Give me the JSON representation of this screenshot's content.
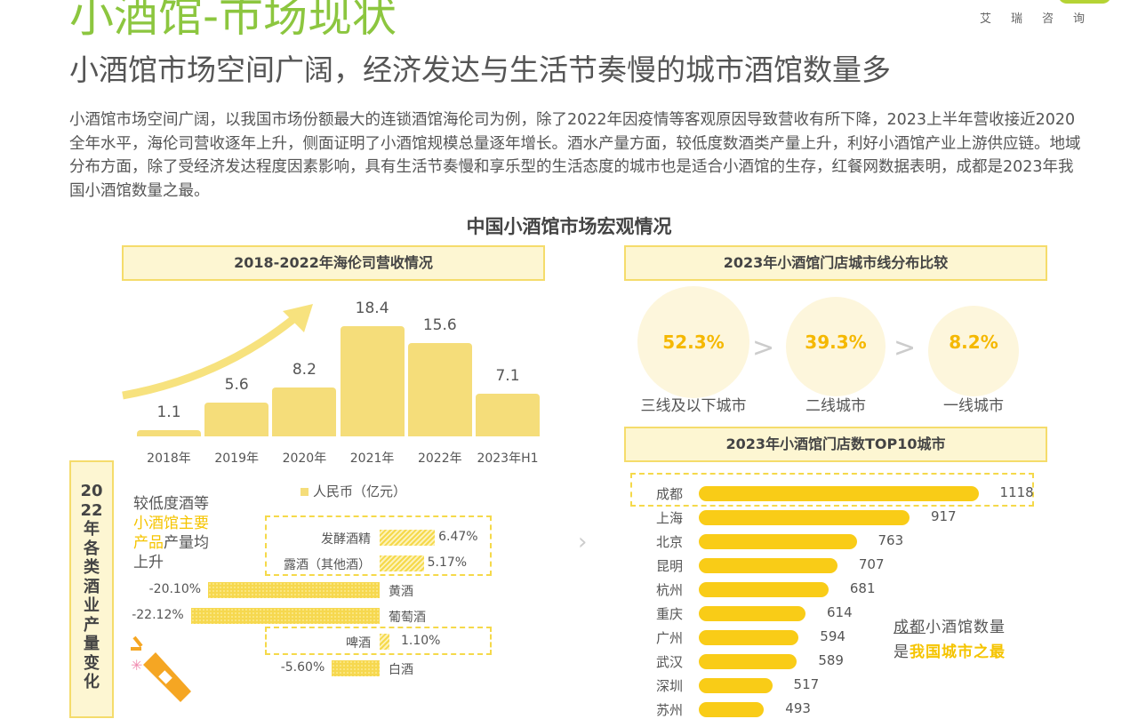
{
  "header": {
    "title": "小酒馆-市场现状",
    "logo": "艾瑞咨询",
    "subtitle": "小酒馆市场空间广阔，经济发达与生活节奏慢的城市酒馆数量多"
  },
  "paragraph": "小酒馆市场空间广阔，以我国市场份额最大的连锁酒馆海伦司为例，除了2022年因疫情等客观原因导致营收有所下降，2023上半年营收接近2020全年水平，海伦司营收逐年上升，侧面证明了小酒馆规模总量逐年增长。酒水产量方面，较低度数酒类产量上升，利好小酒馆产业上游供应链。地域分布方面，除了受经济发达程度因素影响，具有生活节奏慢和享乐型的生活态度的城市也是适合小酒馆的生存，红餐网数据表明，成都是2023年我国小酒馆数量之最。",
  "section_title": "中国小酒馆市场宏观情况",
  "colors": {
    "title_green": "#8cc63f",
    "bar_yellow": "#f5dd7a",
    "city_bar": "#f9cc17",
    "accent": "#f5b800"
  },
  "chart_data": [
    {
      "type": "bar",
      "title": "2018-2022年海伦司营收情况",
      "categories": [
        "2018年",
        "2019年",
        "2020年",
        "2021年",
        "2022年",
        "2023年H1"
      ],
      "values": [
        1.1,
        5.6,
        8.2,
        18.4,
        15.6,
        7.1
      ],
      "legend": "人民币（亿元）",
      "labels": [
        "1.1",
        "5.6",
        "8.2",
        "18.4",
        "15.6",
        "7.1"
      ]
    },
    {
      "type": "bar",
      "orientation": "horizontal-diverging",
      "title": "2022年各类酒业产量变化",
      "note": {
        "a": "较低度酒等",
        "b": "小酒馆主要产品",
        "c": "产量均上升"
      },
      "categories": [
        "发酵酒精",
        "露酒（其他酒）",
        "黄酒",
        "葡萄酒",
        "啤酒",
        "白酒"
      ],
      "values": [
        6.47,
        5.17,
        -20.1,
        -22.12,
        1.1,
        -5.6
      ],
      "labels": [
        "6.47%",
        "5.17%",
        "-20.10%",
        "-22.12%",
        "1.10%",
        "-5.60%"
      ]
    },
    {
      "type": "table",
      "title": "2023年小酒馆门店城市线分布比较",
      "items": [
        {
          "label": "三线及以下城市",
          "value": "52.3%"
        },
        {
          "label": "二线城市",
          "value": "39.3%"
        },
        {
          "label": "一线城市",
          "value": "8.2%"
        }
      ]
    },
    {
      "type": "bar",
      "orientation": "horizontal",
      "title": "2023年小酒馆门店数TOP10城市",
      "categories": [
        "成都",
        "上海",
        "北京",
        "昆明",
        "杭州",
        "重庆",
        "广州",
        "武汉",
        "深圳",
        "苏州"
      ],
      "values": [
        1118,
        917,
        763,
        707,
        681,
        614,
        594,
        589,
        517,
        493
      ],
      "callout": {
        "a": "成都",
        "b": "小酒馆数量",
        "c": "是",
        "d": "我国城市之最"
      }
    }
  ]
}
